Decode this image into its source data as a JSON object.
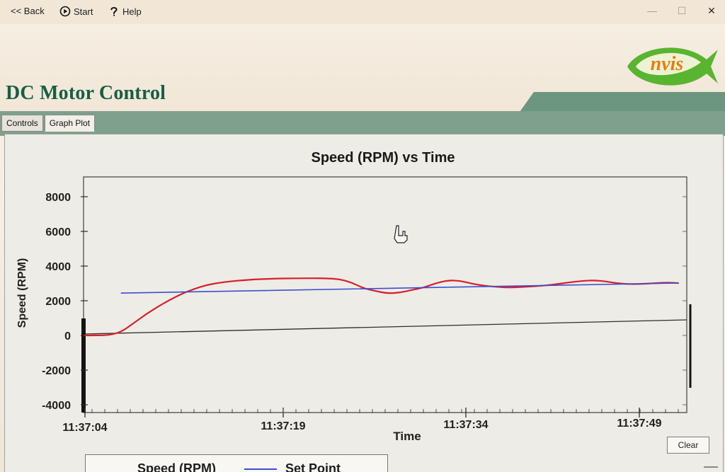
{
  "window": {
    "title_buttons": {
      "back_label": "<< Back",
      "start_label": "Start",
      "help_label": "Help"
    },
    "controls": {
      "minimize_glyph": "—",
      "maximize_glyph": "☐",
      "close_glyph": "✕"
    }
  },
  "header": {
    "title": "DC Motor Control",
    "logo_text": "nvis"
  },
  "tabs": [
    {
      "label": "Controls"
    },
    {
      "label": "Graph Plot"
    }
  ],
  "chart_data": {
    "type": "line",
    "title": "Speed (RPM) vs Time",
    "xlabel": "Time",
    "ylabel": "Speed (RPM)",
    "ylim": [
      -4000,
      8000
    ],
    "yticks": [
      8000,
      6000,
      4000,
      2000,
      0,
      -2000,
      -4000
    ],
    "xtick_labels": [
      "11:37:04",
      "11:37:19",
      "11:37:34",
      "11:37:49"
    ],
    "xlim": [
      0,
      49
    ],
    "series": [
      {
        "name": "Speed (RPM)",
        "color": "#d81f2a",
        "x": [
          0,
          1,
          2,
          3,
          4,
          5,
          6,
          7,
          8,
          9,
          10,
          11,
          12,
          13,
          14,
          15,
          16,
          17,
          18,
          19,
          20,
          21,
          22,
          23,
          24,
          25,
          26,
          27,
          28,
          29,
          30,
          31,
          32,
          33,
          34,
          35,
          36,
          37,
          38,
          39,
          40,
          41,
          42,
          43,
          44,
          45,
          46,
          47,
          48,
          49
        ],
        "values": [
          0,
          0,
          20,
          200,
          700,
          1200,
          1650,
          2050,
          2400,
          2680,
          2900,
          3030,
          3120,
          3180,
          3230,
          3260,
          3280,
          3290,
          3295,
          3300,
          3290,
          3250,
          3060,
          2720,
          2560,
          2420,
          2470,
          2620,
          2760,
          3020,
          3180,
          3150,
          2980,
          2860,
          2800,
          2760,
          2790,
          2830,
          2880,
          2960,
          3060,
          3140,
          3180,
          3120,
          3000,
          2960,
          2970,
          3010,
          3050,
          3020
        ]
      },
      {
        "name": "Set Point",
        "color": "#3a4fd0",
        "x": [
          3,
          49
        ],
        "values": [
          2440,
          3020
        ]
      }
    ],
    "grid": false,
    "legend": "bottom"
  },
  "buttons": {
    "clear_label": "Clear"
  }
}
